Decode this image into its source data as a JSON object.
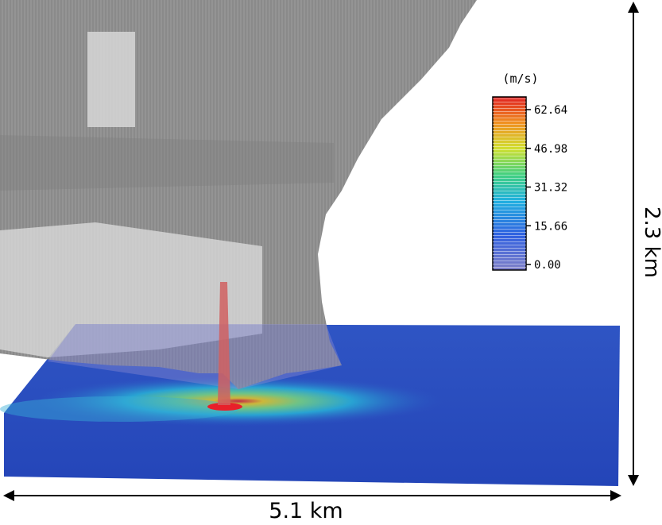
{
  "colorbar": {
    "unit": "(m/s)",
    "ticks": [
      {
        "value": 62.64,
        "label": "62.64"
      },
      {
        "value": 46.98,
        "label": "46.98"
      },
      {
        "value": 31.32,
        "label": "31.32"
      },
      {
        "value": 15.66,
        "label": "15.66"
      },
      {
        "value": 0,
        "label": "0.00"
      }
    ]
  },
  "dimensions": {
    "height": "2.3 km",
    "width": "5.1 km"
  }
}
